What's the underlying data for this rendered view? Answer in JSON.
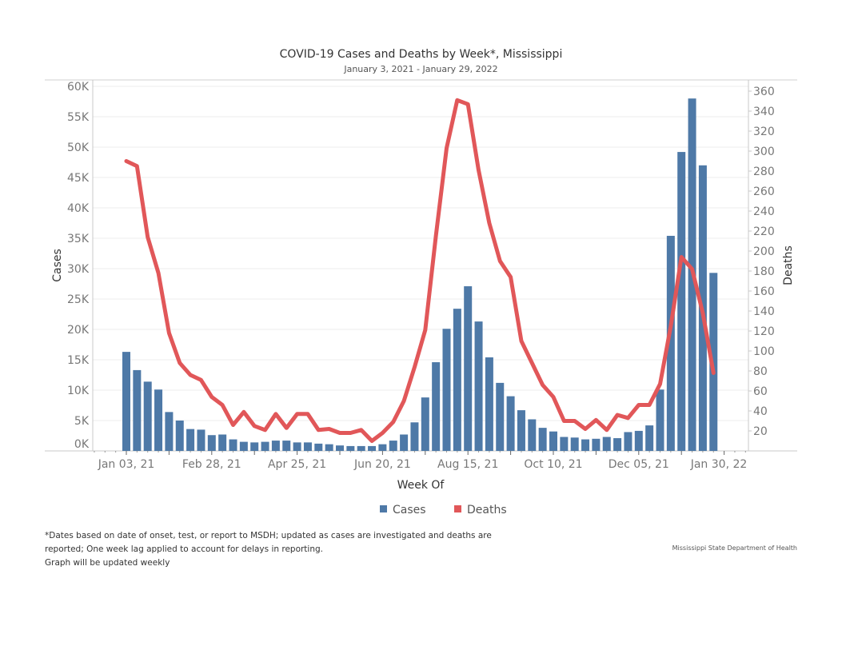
{
  "chart_data": {
    "type": "bar+line",
    "title": "COVID-19 Cases and Deaths by Week*, Mississippi",
    "subtitle": "January 3, 2021 - January 29, 2022",
    "xlabel": "Week Of",
    "ylabel_left": "Cases",
    "ylabel_right": "Deaths",
    "ylim_left": [
      0,
      60000
    ],
    "ylim_right": [
      0,
      360
    ],
    "yticks_left": [
      "0K",
      "5K",
      "10K",
      "15K",
      "20K",
      "25K",
      "30K",
      "35K",
      "40K",
      "45K",
      "50K",
      "55K",
      "60K"
    ],
    "yticks_right": [
      "20",
      "40",
      "60",
      "80",
      "100",
      "120",
      "140",
      "160",
      "180",
      "200",
      "220",
      "240",
      "260",
      "280",
      "300",
      "320",
      "340",
      "360"
    ],
    "xtick_labels": [
      "Jan 03, 21",
      "Feb 28, 21",
      "Apr 25, 21",
      "Jun 20, 21",
      "Aug 15, 21",
      "Oct 10, 21",
      "Dec 05, 21",
      "Jan 30, 22"
    ],
    "grid": true,
    "legend_position": "bottom",
    "legend": [
      {
        "name": "Cases",
        "color": "#4e79a7"
      },
      {
        "name": "Deaths",
        "color": "#e15759"
      }
    ],
    "series": [
      {
        "name": "Cases",
        "type": "bar",
        "color": "#4e79a7",
        "values": [
          16300,
          13300,
          11400,
          10100,
          6400,
          5000,
          3600,
          3500,
          2600,
          2700,
          1900,
          1500,
          1400,
          1500,
          1700,
          1700,
          1400,
          1400,
          1200,
          1100,
          900,
          800,
          800,
          800,
          1100,
          1700,
          2700,
          4700,
          8800,
          14600,
          20100,
          23400,
          27100,
          21300,
          15400,
          11200,
          9000,
          6700,
          5200,
          3800,
          3200,
          2300,
          2200,
          1900,
          2000,
          2300,
          2100,
          3100,
          3300,
          4200,
          10100,
          35400,
          49200,
          58000,
          47000,
          29300
        ]
      },
      {
        "name": "Deaths",
        "type": "line",
        "color": "#e15759",
        "values": [
          290,
          285,
          214,
          178,
          118,
          88,
          76,
          71,
          54,
          46,
          26,
          39,
          25,
          21,
          37,
          23,
          37,
          37,
          21,
          22,
          18,
          18,
          21,
          10,
          18,
          29,
          50,
          84,
          121,
          215,
          303,
          351,
          347,
          281,
          228,
          190,
          174,
          110,
          88,
          66,
          54,
          30,
          30,
          22,
          31,
          21,
          36,
          33,
          46,
          46,
          67,
          125,
          194,
          182,
          138,
          78
        ]
      }
    ]
  },
  "footnote": {
    "line1": "*Dates based on date of onset, test, or report to MSDH; updated as cases are investigated and deaths are",
    "line2": "reported; One week lag applied to account for delays in reporting.",
    "line3": "Graph will be updated weekly"
  },
  "source": "Mississippi State Department of Health"
}
